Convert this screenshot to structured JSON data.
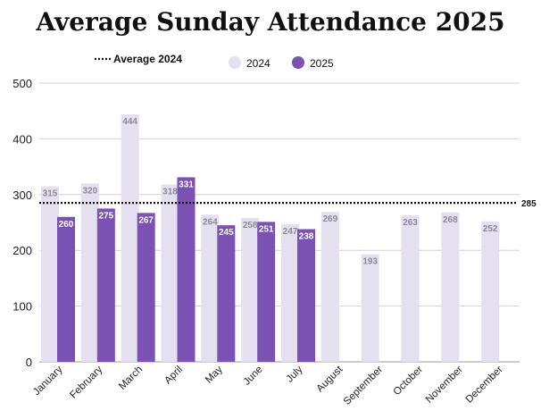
{
  "chart_data": {
    "type": "bar",
    "title": "Average Sunday Attendance 2025",
    "categories": [
      "January",
      "February",
      "March",
      "April",
      "May",
      "June",
      "July",
      "August",
      "September",
      "October",
      "November",
      "December"
    ],
    "series": [
      {
        "name": "2024",
        "values": [
          315,
          320,
          444,
          318,
          264,
          258,
          247,
          269,
          193,
          263,
          268,
          252
        ],
        "color": "#e4e0ef"
      },
      {
        "name": "2025",
        "values": [
          260,
          275,
          267,
          331,
          245,
          251,
          238,
          null,
          null,
          null,
          null,
          null
        ],
        "color": "#7b52b3"
      }
    ],
    "reference_line": {
      "name": "Average 2024",
      "value": 285,
      "label": "285"
    },
    "ylim": [
      0,
      500
    ],
    "yticks": [
      0,
      100,
      200,
      300,
      400,
      500
    ],
    "grid": true,
    "legend": "top"
  }
}
